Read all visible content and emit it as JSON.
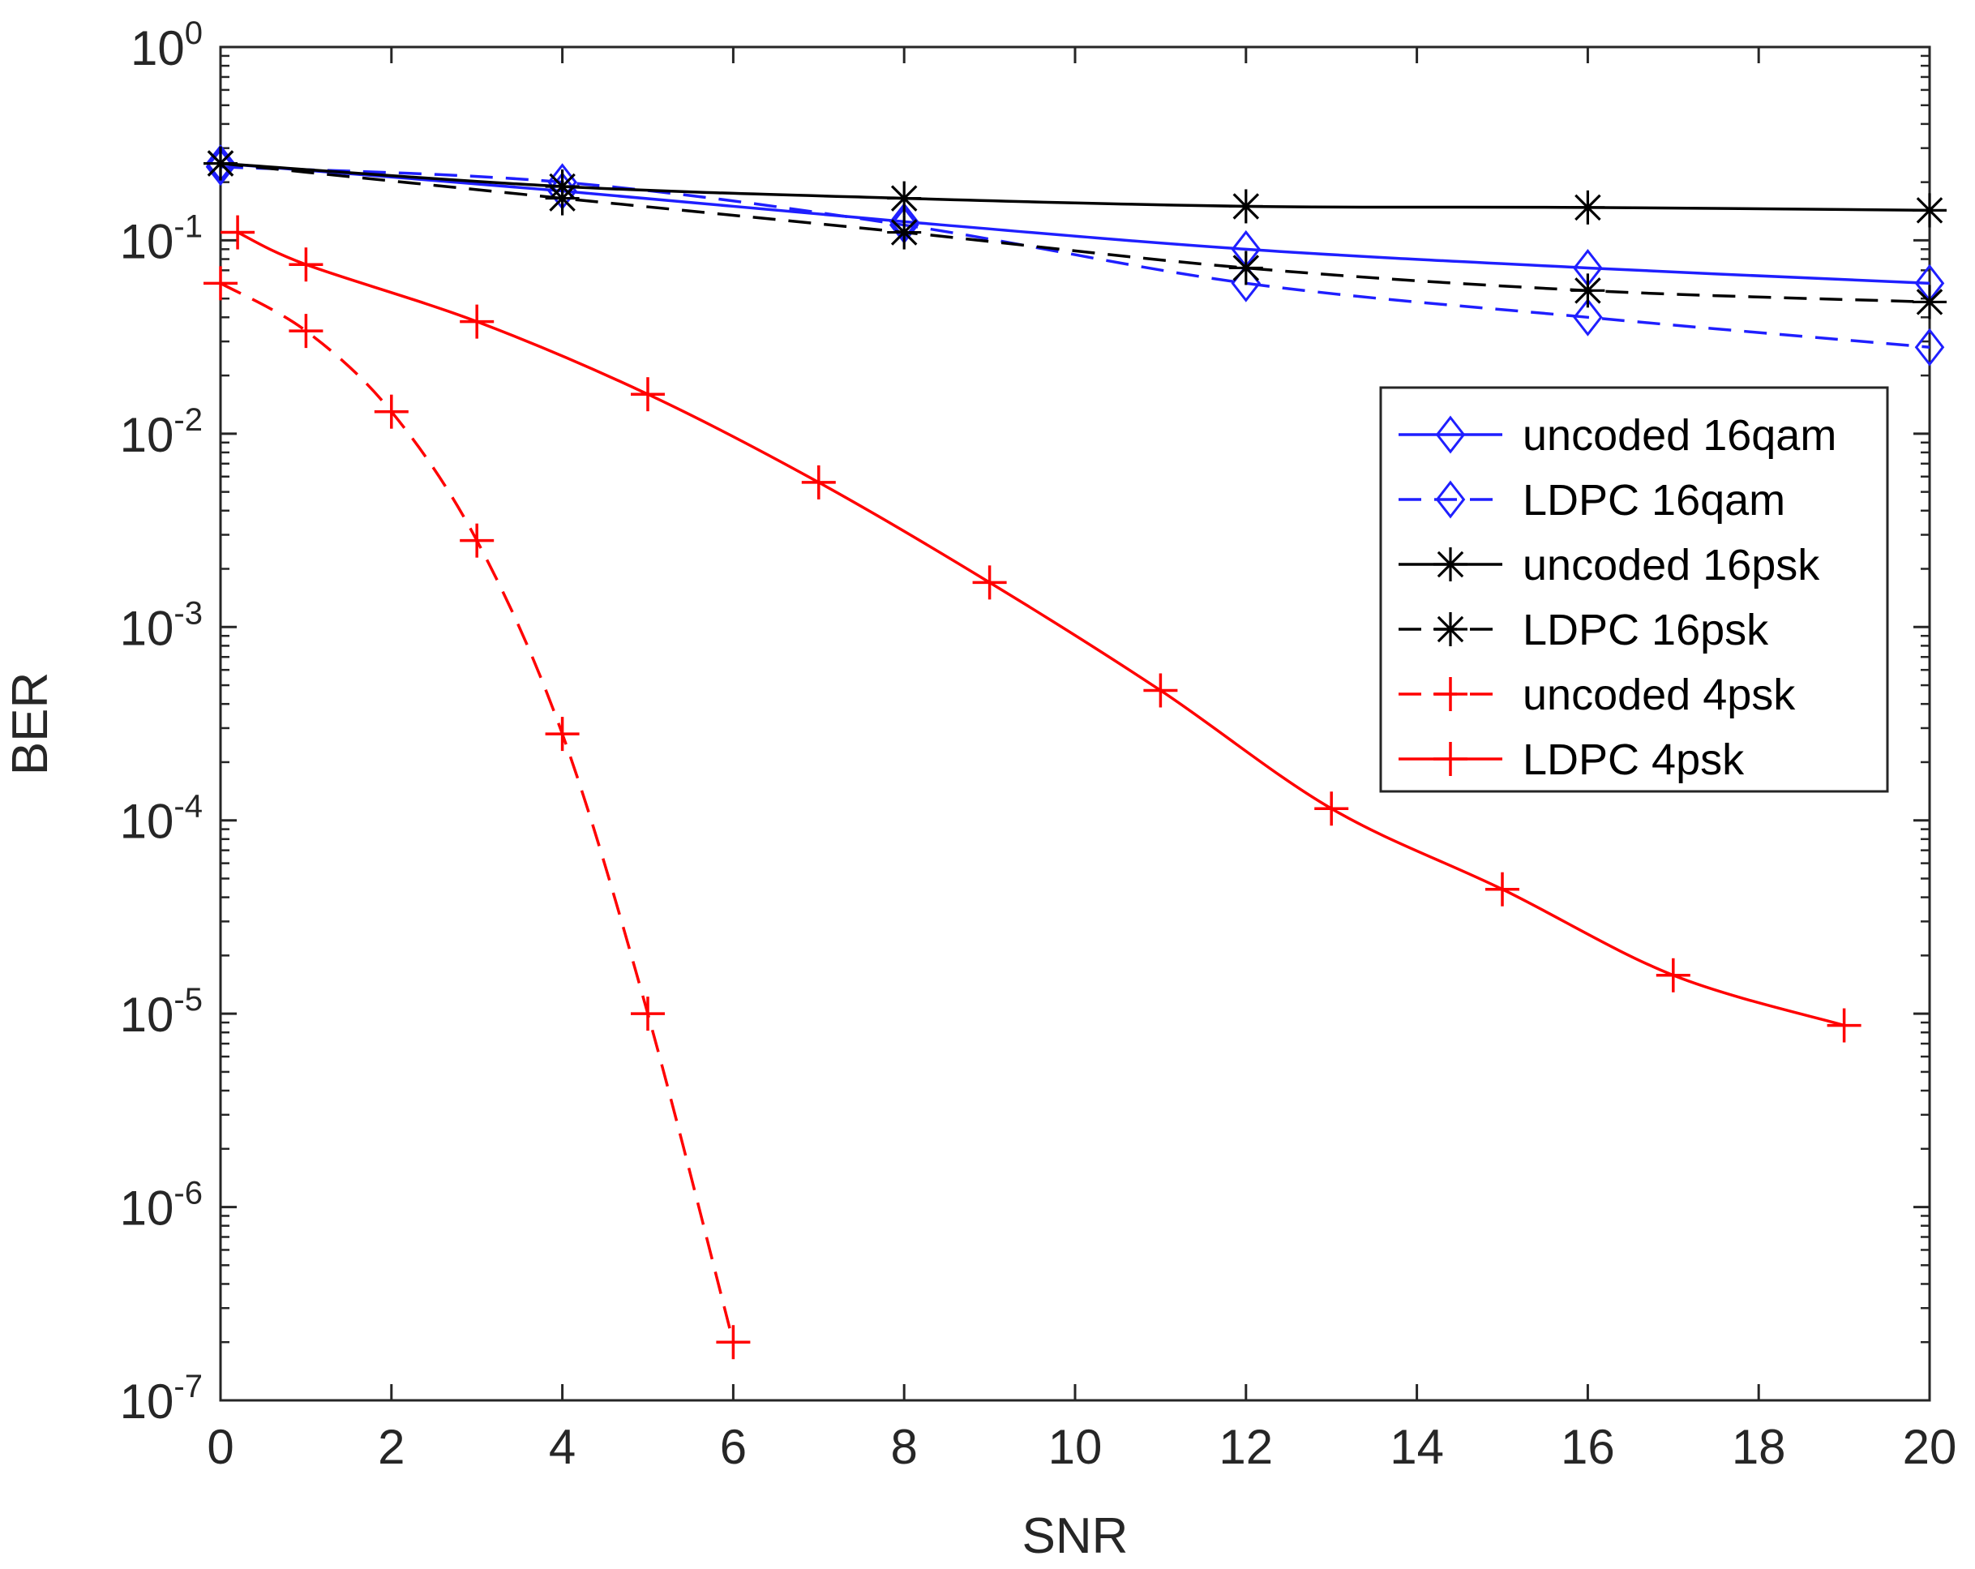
{
  "chart_data": {
    "type": "line",
    "title": "",
    "xlabel": "SNR",
    "ylabel": "BER",
    "xscale": "linear",
    "yscale": "log",
    "xlim": [
      0,
      20
    ],
    "ylim": [
      1e-07,
      1
    ],
    "xticks": [
      0,
      2,
      4,
      6,
      8,
      10,
      12,
      14,
      16,
      18,
      20
    ],
    "yticks": [
      {
        "value": 1.0,
        "base": "10",
        "exp": "0"
      },
      {
        "value": 0.1,
        "base": "10",
        "exp": "-1"
      },
      {
        "value": 0.01,
        "base": "10",
        "exp": "-2"
      },
      {
        "value": 0.001,
        "base": "10",
        "exp": "-3"
      },
      {
        "value": 0.0001,
        "base": "10",
        "exp": "-4"
      },
      {
        "value": 1e-05,
        "base": "10",
        "exp": "-5"
      },
      {
        "value": 1e-06,
        "base": "10",
        "exp": "-6"
      },
      {
        "value": 1e-07,
        "base": "10",
        "exp": "-7"
      }
    ],
    "grid": false,
    "legend_position": "right",
    "series": [
      {
        "name": "uncoded 16qam",
        "color": "#1f1fff",
        "linestyle": "solid",
        "marker": "diamond",
        "x": [
          0,
          4,
          8,
          12,
          16,
          20
        ],
        "y": [
          0.25,
          0.18,
          0.125,
          0.09,
          0.072,
          0.06
        ]
      },
      {
        "name": "LDPC 16qam",
        "color": "#1f1fff",
        "linestyle": "dashed",
        "marker": "diamond",
        "x": [
          0,
          4,
          8,
          12,
          16,
          20
        ],
        "y": [
          0.24,
          0.2,
          0.12,
          0.06,
          0.04,
          0.028
        ]
      },
      {
        "name": "uncoded 16psk",
        "color": "#000000",
        "linestyle": "solid",
        "marker": "asterisk",
        "x": [
          0,
          4,
          8,
          12,
          16,
          20
        ],
        "y": [
          0.25,
          0.19,
          0.165,
          0.15,
          0.148,
          0.143
        ]
      },
      {
        "name": "LDPC 16psk",
        "color": "#000000",
        "linestyle": "dashed",
        "marker": "asterisk",
        "x": [
          0,
          4,
          8,
          12,
          16,
          20
        ],
        "y": [
          0.25,
          0.165,
          0.11,
          0.072,
          0.055,
          0.048
        ]
      },
      {
        "name": "uncoded 4psk",
        "color": "#ff0000",
        "linestyle": "dashed",
        "marker": "plus",
        "x": [
          0,
          1,
          2,
          3,
          4,
          5,
          6
        ],
        "y": [
          0.06,
          0.034,
          0.013,
          0.0028,
          0.00028,
          1e-05,
          2e-07
        ]
      },
      {
        "name": "LDPC 4psk",
        "color": "#ff0000",
        "linestyle": "solid",
        "marker": "plus",
        "x": [
          0.2,
          1,
          3,
          5,
          7,
          9,
          11,
          13,
          15,
          17,
          19
        ],
        "y": [
          0.11,
          0.075,
          0.038,
          0.016,
          0.0056,
          0.0017,
          0.00047,
          0.000115,
          4.4e-05,
          1.58e-05,
          8.7e-06
        ]
      }
    ]
  }
}
